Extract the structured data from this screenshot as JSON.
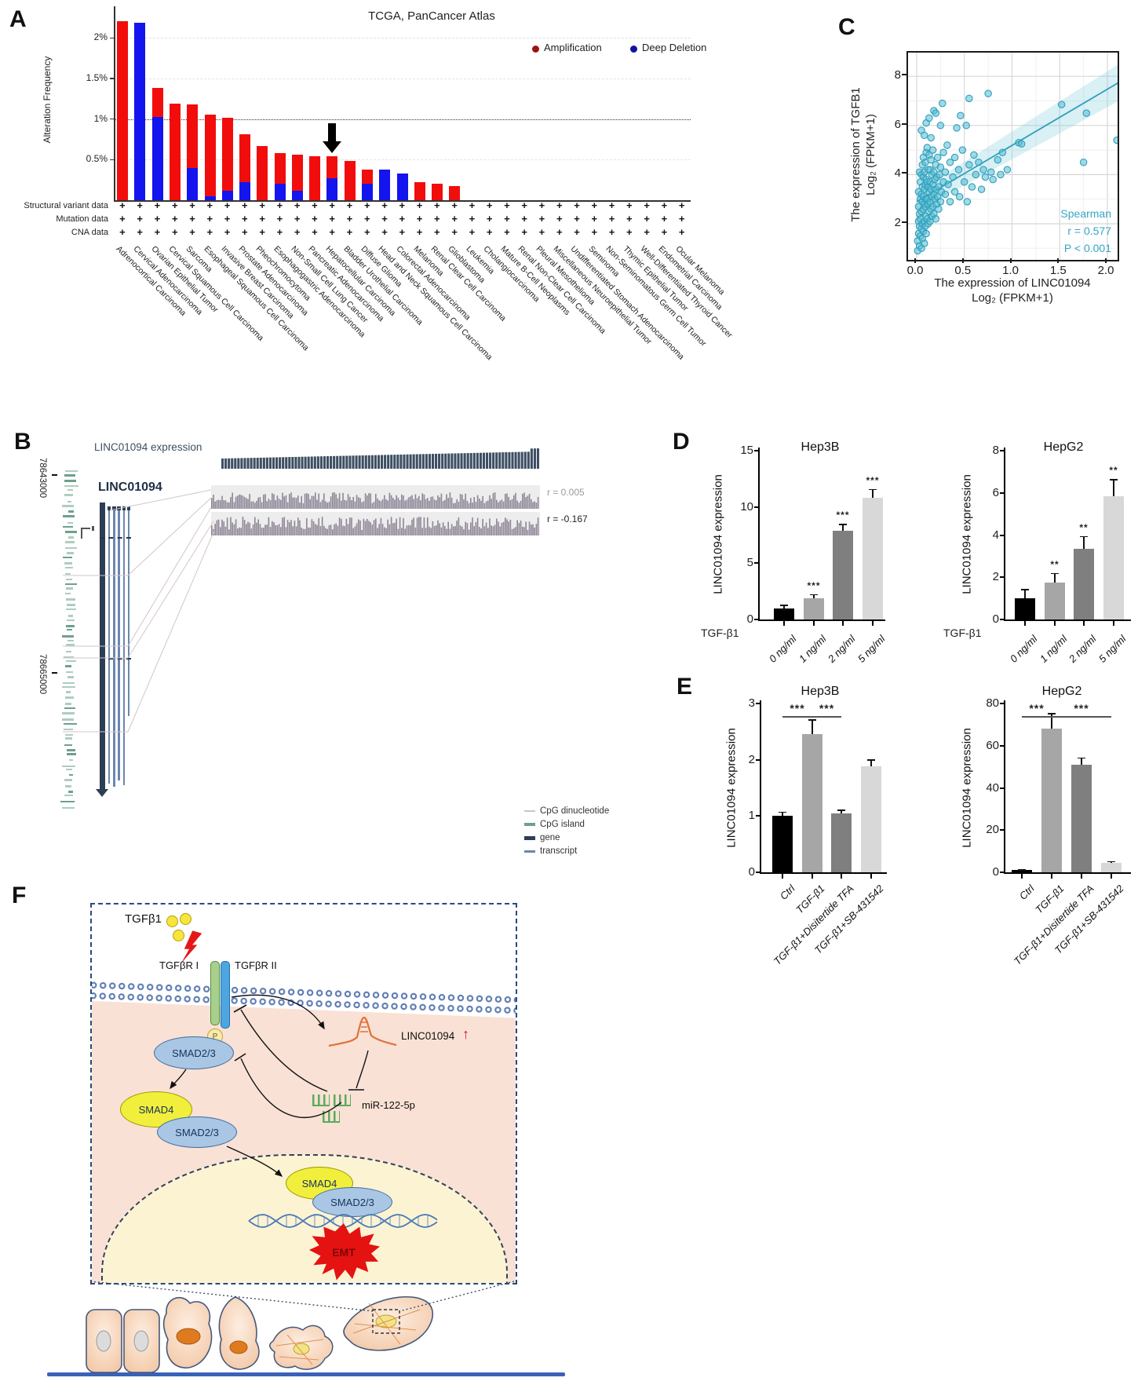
{
  "colors": {
    "amplification": "#f20d0d",
    "deep_deletion": "#1414ee",
    "legend_amp_dot": "#a01212",
    "legend_del_dot": "#1212a0",
    "scatter_point": "#56bcd4",
    "teal_text": "#35a7c6",
    "bar_grays": [
      "#000000",
      "#a6a6a6",
      "#7f7f7f",
      "#d8d8d8"
    ],
    "navy": "#2d3e55",
    "cpg_green": "#6fa08c",
    "cpg_light": "#aecdbf",
    "track_bar": "#8d8596",
    "transcript_blue": "#6b87ad"
  },
  "panels": {
    "a": {
      "label": "A",
      "title": "TCGA, PanCancer Atlas",
      "ylabel": "Alteration Frequency",
      "legend": [
        {
          "label": "Amplification"
        },
        {
          "label": "Deep Deletion"
        }
      ],
      "data_rows": [
        "Structural variant data",
        "Mutation data",
        "CNA data"
      ],
      "plus_symbol": "+",
      "yticks": [
        {
          "v": 2,
          "t": "2%"
        },
        {
          "v": 1.5,
          "t": "1.5%"
        },
        {
          "v": 1,
          "t": "1%"
        },
        {
          "v": 0.5,
          "t": "0.5%"
        }
      ],
      "chart_data": {
        "type": "bar",
        "stacked": true,
        "unit": "%",
        "ylim": [
          0,
          2.3
        ],
        "grid": "dashed horizontal, dotted line at 1%",
        "arrow_marker_category": "Hepatocellular Carcinoma",
        "categories": [
          "Adrenocortical Carcinoma",
          "Cervical Adenocarcinoma",
          "Ovarian Epithelial Tumor",
          "Cervical Squamous Cell Carcinoma",
          "Sarcoma",
          "Esophageal Squamous Cell Carcinoma",
          "Invasive Breast Carcinoma",
          "Prostate Adenocarcinoma",
          "Pheochromocytoma",
          "Esophagogastric Adenocarcinoma",
          "Non-Small Cell Lung Cancer",
          "Pancreatic Adenocarcinoma",
          "Hepatocellular Carcinoma",
          "Bladder Urothelial Carcinoma",
          "Diffuse Glioma",
          "Head and Neck Squamous Cell Carcinoma",
          "Colorectal Adenocarcinoma",
          "Melanoma",
          "Renal Clear Cell Carcinoma",
          "Glioblastoma",
          "Leukemia",
          "Cholangiocarcinoma",
          "Mature B-Cell Neoplasms",
          "Renal Non-Clear Cell Carcinoma",
          "Pleural Mesothelioma",
          "Miscellaneous Neuroepithelial Tumor",
          "Undifferentiated Stomach Adenocarcinoma",
          "Seminoma",
          "Non-Seminomatous Germ Cell Tumor",
          "Thymic Epithelial Tumor",
          "Well-Differentiated Thyroid Cancer",
          "Endometrial Carcinoma",
          "Ocular Melanoma"
        ],
        "series": [
          {
            "name": "Amplification",
            "values": [
              2.2,
              0,
              0.36,
              1.19,
              0.78,
              1.0,
              0.89,
              0.59,
              0.67,
              0.38,
              0.44,
              0.54,
              0.27,
              0.48,
              0.18,
              0,
              0,
              0.22,
              0.2,
              0.17,
              0,
              0,
              0,
              0,
              0,
              0,
              0,
              0,
              0,
              0,
              0,
              0,
              0
            ]
          },
          {
            "name": "Deep Deletion",
            "values": [
              0,
              2.18,
              1.02,
              0,
              0.4,
              0.05,
              0.12,
              0.22,
              0,
              0.2,
              0.12,
              0,
              0.27,
              0,
              0.2,
              0.38,
              0.33,
              0,
              0,
              0,
              0,
              0,
              0,
              0,
              0,
              0,
              0,
              0,
              0,
              0,
              0,
              0,
              0
            ]
          }
        ]
      }
    },
    "b": {
      "label": "B",
      "expression_label": "LINC01094 expression",
      "gene_label": "LINC01094",
      "coord_top": "78643000",
      "coord_bottom": "78665000",
      "track1_r": "r = 0.005",
      "track2_r": "r = -0.167",
      "legend": [
        {
          "label": "CpG dinucleotide"
        },
        {
          "label": "CpG island"
        },
        {
          "label": "gene"
        },
        {
          "label": "transcript"
        }
      ]
    },
    "c": {
      "label": "C",
      "chart_data": {
        "type": "scatter",
        "title": "",
        "xlabel": "The expression of LINC01094",
        "xlabel2": "Log₂ (FPKM+1)",
        "ylabel": "The expression of TGFB1",
        "ylabel2": "Log₂ (FPKM+1)",
        "xticks": [
          "0.0",
          "0.5",
          "1.0",
          "1.5",
          "2.0"
        ],
        "yticks": [
          "2",
          "4",
          "6",
          "8"
        ],
        "xlim": [
          -0.09,
          2.11
        ],
        "ylim": [
          0.5,
          8.8
        ],
        "grid": "on",
        "annotation": {
          "method": "Spearman",
          "r": "r = 0.577",
          "p": "P < 0.001"
        },
        "regression": {
          "x": [
            0,
            2.12
          ],
          "y": [
            2.9,
            7.75
          ],
          "band_upper": [
            3.3,
            8.5
          ],
          "band_lower": [
            2.5,
            7.0
          ]
        },
        "points": [
          [
            0.01,
            0.9
          ],
          [
            0.01,
            1.3
          ],
          [
            0.02,
            1.6
          ],
          [
            0.02,
            2.1
          ],
          [
            0.02,
            2.7
          ],
          [
            0.02,
            3.3
          ],
          [
            0.03,
            1.1
          ],
          [
            0.03,
            1.9
          ],
          [
            0.03,
            2.4
          ],
          [
            0.03,
            4.1
          ],
          [
            0.04,
            1.5
          ],
          [
            0.04,
            2.2
          ],
          [
            0.04,
            3.0
          ],
          [
            0.04,
            3.7
          ],
          [
            0.05,
            1.0
          ],
          [
            0.05,
            1.8
          ],
          [
            0.05,
            2.5
          ],
          [
            0.05,
            3.2
          ],
          [
            0.05,
            4.0
          ],
          [
            0.05,
            5.8
          ],
          [
            0.06,
            1.4
          ],
          [
            0.06,
            2.0
          ],
          [
            0.06,
            2.9
          ],
          [
            0.06,
            3.5
          ],
          [
            0.06,
            4.4
          ],
          [
            0.07,
            1.7
          ],
          [
            0.07,
            2.6
          ],
          [
            0.07,
            3.1
          ],
          [
            0.07,
            3.9
          ],
          [
            0.07,
            4.7
          ],
          [
            0.08,
            1.2
          ],
          [
            0.08,
            2.1
          ],
          [
            0.08,
            2.8
          ],
          [
            0.08,
            3.4
          ],
          [
            0.08,
            4.1
          ],
          [
            0.08,
            5.6
          ],
          [
            0.09,
            1.9
          ],
          [
            0.09,
            2.7
          ],
          [
            0.09,
            3.6
          ],
          [
            0.09,
            4.5
          ],
          [
            0.1,
            1.6
          ],
          [
            0.1,
            2.3
          ],
          [
            0.1,
            3.0
          ],
          [
            0.1,
            3.8
          ],
          [
            0.1,
            4.9
          ],
          [
            0.1,
            6.1
          ],
          [
            0.11,
            2.2
          ],
          [
            0.11,
            3.0
          ],
          [
            0.11,
            3.7
          ],
          [
            0.11,
            5.1
          ],
          [
            0.12,
            2.0
          ],
          [
            0.12,
            2.8
          ],
          [
            0.12,
            3.5
          ],
          [
            0.12,
            4.2
          ],
          [
            0.13,
            2.5
          ],
          [
            0.13,
            3.3
          ],
          [
            0.13,
            4.8
          ],
          [
            0.13,
            6.3
          ],
          [
            0.14,
            2.1
          ],
          [
            0.14,
            2.9
          ],
          [
            0.14,
            3.7
          ],
          [
            0.14,
            4.2
          ],
          [
            0.15,
            2.6
          ],
          [
            0.15,
            3.4
          ],
          [
            0.15,
            4.6
          ],
          [
            0.15,
            5.5
          ],
          [
            0.16,
            2.3
          ],
          [
            0.16,
            3.1
          ],
          [
            0.16,
            4.0
          ],
          [
            0.17,
            2.7
          ],
          [
            0.17,
            3.6
          ],
          [
            0.17,
            5.0
          ],
          [
            0.18,
            2.4
          ],
          [
            0.18,
            3.2
          ],
          [
            0.18,
            4.1
          ],
          [
            0.18,
            6.6
          ],
          [
            0.19,
            3.0
          ],
          [
            0.19,
            3.8
          ],
          [
            0.2,
            2.2
          ],
          [
            0.2,
            3.4
          ],
          [
            0.2,
            4.4
          ],
          [
            0.2,
            6.5
          ],
          [
            0.21,
            2.8
          ],
          [
            0.21,
            3.9
          ],
          [
            0.22,
            3.1
          ],
          [
            0.22,
            4.7
          ],
          [
            0.23,
            2.6
          ],
          [
            0.23,
            3.5
          ],
          [
            0.24,
            4.0
          ],
          [
            0.25,
            2.9
          ],
          [
            0.25,
            4.3
          ],
          [
            0.25,
            6.0
          ],
          [
            0.26,
            3.3
          ],
          [
            0.27,
            6.9
          ],
          [
            0.28,
            3.7
          ],
          [
            0.28,
            4.9
          ],
          [
            0.3,
            3.2
          ],
          [
            0.3,
            4.1
          ],
          [
            0.32,
            5.2
          ],
          [
            0.33,
            3.6
          ],
          [
            0.35,
            2.9
          ],
          [
            0.35,
            4.5
          ],
          [
            0.38,
            3.9
          ],
          [
            0.4,
            3.3
          ],
          [
            0.4,
            4.7
          ],
          [
            0.42,
            5.9
          ],
          [
            0.44,
            4.2
          ],
          [
            0.45,
            3.1
          ],
          [
            0.46,
            6.4
          ],
          [
            0.48,
            5.0
          ],
          [
            0.5,
            3.7
          ],
          [
            0.52,
            6.0
          ],
          [
            0.53,
            2.9
          ],
          [
            0.55,
            4.4
          ],
          [
            0.55,
            7.1
          ],
          [
            0.58,
            3.5
          ],
          [
            0.6,
            4.8
          ],
          [
            0.62,
            4.0
          ],
          [
            0.65,
            4.5
          ],
          [
            0.68,
            3.4
          ],
          [
            0.7,
            4.2
          ],
          [
            0.72,
            3.9
          ],
          [
            0.75,
            7.3
          ],
          [
            0.78,
            4.1
          ],
          [
            0.8,
            3.8
          ],
          [
            0.85,
            4.6
          ],
          [
            0.88,
            4.0
          ],
          [
            0.9,
            4.9
          ],
          [
            0.95,
            4.2
          ],
          [
            1.07,
            5.3
          ],
          [
            1.1,
            5.25
          ],
          [
            1.52,
            6.85
          ],
          [
            1.75,
            4.5
          ],
          [
            1.78,
            6.5
          ],
          [
            2.1,
            5.4
          ]
        ]
      }
    },
    "d": {
      "label": "D",
      "xaxis_label": "TGF-β1",
      "charts": [
        {
          "title": "Hep3B",
          "ylabel": "LINC01094 expression",
          "chart_data": {
            "type": "bar",
            "categories": [
              "0 ng/ml",
              "1 ng/ml",
              "2 ng/ml",
              "5 ng/ml"
            ],
            "values": [
              1.0,
              1.85,
              7.9,
              10.8
            ],
            "errors": [
              0.3,
              0.4,
              0.6,
              0.8
            ],
            "sig": [
              "",
              "***",
              "***",
              "***"
            ],
            "yticks": [
              0,
              5,
              10,
              15
            ],
            "ylim": [
              0,
              15
            ]
          }
        },
        {
          "title": "HepG2",
          "ylabel": "LINC01094 expression",
          "chart_data": {
            "type": "bar",
            "categories": [
              "0 ng/ml",
              "1 ng/ml",
              "2 ng/ml",
              "5 ng/ml"
            ],
            "values": [
              1.0,
              1.75,
              3.35,
              5.85
            ],
            "errors": [
              0.45,
              0.45,
              0.6,
              0.8
            ],
            "sig": [
              "",
              "**",
              "**",
              "**"
            ],
            "yticks": [
              0,
              2,
              4,
              6,
              8
            ],
            "ylim": [
              0,
              8
            ]
          }
        }
      ]
    },
    "e": {
      "label": "E",
      "charts": [
        {
          "title": "Hep3B",
          "ylabel": "LINC01094 expression",
          "chart_data": {
            "type": "bar",
            "categories": [
              "Ctrl",
              "TGF-β1",
              "TGF-β1+Disitertide TFA",
              "TGF-β1+SB-431542"
            ],
            "values": [
              1.0,
              2.45,
              1.05,
              1.88
            ],
            "errors": [
              0.08,
              0.27,
              0.06,
              0.13
            ],
            "sig_lines": [
              {
                "from": 0,
                "to": 1,
                "label": "***"
              },
              {
                "from": 1,
                "to": 2,
                "label": "***"
              }
            ],
            "yticks": [
              0,
              1,
              2,
              3
            ],
            "ylim": [
              0,
              3
            ]
          }
        },
        {
          "title": "HepG2",
          "ylabel": "LINC01094 expression",
          "chart_data": {
            "type": "bar",
            "categories": [
              "Ctrl",
              "TGF-β1",
              "TGF-β1+Disitertide TFA",
              "TGF-β1+SB-431542"
            ],
            "values": [
              1.0,
              68,
              51,
              4.5
            ],
            "errors": [
              0.5,
              7.5,
              3.5,
              0.8
            ],
            "sig_lines": [
              {
                "from": 0,
                "to": 1,
                "label": "***"
              },
              {
                "from": 1,
                "to": 3,
                "label": "***"
              }
            ],
            "yticks": [
              0,
              20,
              40,
              60,
              80
            ],
            "ylim": [
              0,
              80
            ]
          }
        }
      ]
    },
    "f": {
      "label": "F",
      "tgfb1": "TGFβ1",
      "receptor1": "TGFβR I",
      "receptor2": "TGFβR II",
      "p": "P",
      "smad23": "SMAD2/3",
      "smad4": "SMAD4",
      "smad23_b": "SMAD2/3",
      "smad4_n": "SMAD4",
      "smad23_n": "SMAD2/3",
      "linc": "LINC01094",
      "up_arrow": "↑",
      "mir": "miR-122-5p",
      "emt": "EMT"
    }
  }
}
